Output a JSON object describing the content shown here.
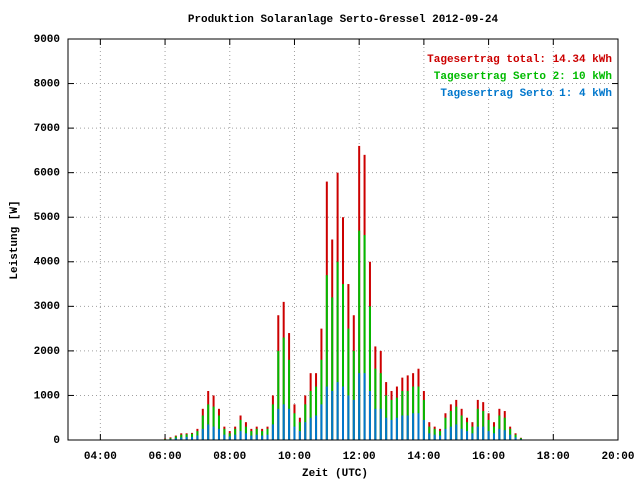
{
  "chart_data": {
    "type": "bar",
    "title": "Produktion Solaranlage Serto-Gressel 2012-09-24",
    "xlabel": "Zeit (UTC)",
    "ylabel": "Leistung [W]",
    "x": [
      360,
      370,
      380,
      390,
      400,
      410,
      420,
      430,
      440,
      450,
      460,
      470,
      480,
      490,
      500,
      510,
      520,
      530,
      540,
      550,
      560,
      570,
      580,
      590,
      600,
      610,
      620,
      630,
      640,
      650,
      660,
      670,
      680,
      690,
      700,
      710,
      720,
      730,
      740,
      750,
      760,
      770,
      780,
      790,
      800,
      810,
      820,
      830,
      840,
      850,
      860,
      870,
      880,
      890,
      900,
      910,
      920,
      930,
      940,
      950,
      960,
      970,
      980,
      990,
      1000,
      1010,
      1020
    ],
    "series": [
      {
        "name": "Tagesertrag total: 14.34 kWh",
        "color": "#cc0000",
        "values": [
          30,
          60,
          100,
          150,
          150,
          160,
          250,
          700,
          1100,
          1000,
          700,
          300,
          200,
          300,
          550,
          400,
          250,
          300,
          250,
          300,
          1000,
          2800,
          3100,
          2400,
          800,
          500,
          1000,
          1500,
          1500,
          2500,
          5800,
          4500,
          6000,
          5000,
          3500,
          2800,
          6600,
          6400,
          4000,
          2100,
          2000,
          1300,
          1100,
          1200,
          1400,
          1450,
          1500,
          1600,
          1100,
          400,
          300,
          250,
          600,
          800,
          900,
          700,
          500,
          400,
          900,
          850,
          600,
          400,
          700,
          650,
          300,
          150,
          50
        ]
      },
      {
        "name": "Tagesertrag Serto 2: 10 kWh",
        "color": "#00bb00",
        "values": [
          20,
          40,
          80,
          120,
          130,
          140,
          200,
          550,
          800,
          750,
          550,
          250,
          150,
          250,
          450,
          300,
          200,
          250,
          200,
          250,
          800,
          2000,
          2300,
          1800,
          600,
          400,
          800,
          1100,
          1200,
          1800,
          3700,
          3200,
          4000,
          3500,
          2500,
          2000,
          4700,
          4600,
          3000,
          1600,
          1500,
          1000,
          900,
          950,
          1100,
          1100,
          1200,
          1200,
          900,
          300,
          250,
          200,
          500,
          650,
          750,
          550,
          400,
          300,
          700,
          650,
          450,
          300,
          550,
          500,
          250,
          120,
          40
        ]
      },
      {
        "name": "Tagesertrag Serto 1: 4 kWh",
        "color": "#0077cc",
        "values": [
          10,
          20,
          40,
          60,
          70,
          70,
          100,
          250,
          350,
          300,
          250,
          120,
          80,
          120,
          200,
          150,
          100,
          120,
          100,
          120,
          350,
          700,
          800,
          700,
          300,
          200,
          400,
          500,
          550,
          800,
          1200,
          1100,
          1300,
          1200,
          1000,
          900,
          1500,
          1500,
          1100,
          700,
          700,
          500,
          450,
          500,
          550,
          550,
          600,
          600,
          450,
          150,
          120,
          100,
          250,
          300,
          350,
          250,
          200,
          150,
          300,
          300,
          200,
          150,
          250,
          220,
          120,
          60,
          20
        ]
      }
    ],
    "xlim": [
      180,
      1200
    ],
    "xticks": [
      {
        "value": 240,
        "label": "04:00"
      },
      {
        "value": 360,
        "label": "06:00"
      },
      {
        "value": 480,
        "label": "08:00"
      },
      {
        "value": 600,
        "label": "10:00"
      },
      {
        "value": 720,
        "label": "12:00"
      },
      {
        "value": 840,
        "label": "14:00"
      },
      {
        "value": 960,
        "label": "16:00"
      },
      {
        "value": 1080,
        "label": "18:00"
      },
      {
        "value": 1200,
        "label": "20:00"
      }
    ],
    "ylim": [
      0,
      9000
    ],
    "yticks": [
      0,
      1000,
      2000,
      3000,
      4000,
      5000,
      6000,
      7000,
      8000,
      9000
    ],
    "grid": true,
    "legend": "top-right"
  }
}
